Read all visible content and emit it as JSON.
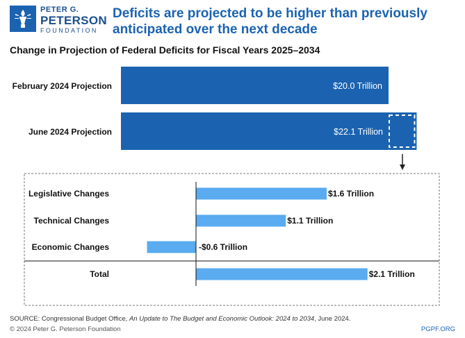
{
  "branding": {
    "logo_line1": "PETER G.",
    "logo_line2": "PETERSON",
    "logo_line3": "FOUNDATION",
    "accent_color": "#1b63b0",
    "light_color": "#5aabef"
  },
  "headline": "Deficits are projected to be higher than previously anticipated over the next decade",
  "footer": {
    "source_prefix": "SOURCE: Congressional Budget Office, ",
    "source_title": "An Update to The Budget and Economic Outlook: 2024 to 2034",
    "source_suffix": ", June 2024.",
    "copyright": "© 2024 Peter G. Peterson Foundation",
    "url": "PGPF.ORG"
  },
  "chart_data": [
    {
      "type": "bar",
      "orientation": "horizontal",
      "title": "Change in Projection of Federal Deficits for Fiscal Years 2025–2034",
      "categories": [
        "February 2024 Projection",
        "June 2024 Projection"
      ],
      "values": [
        20.0,
        22.1
      ],
      "labels": [
        "$20.0 Trillion",
        "$22.1 Trillion"
      ],
      "highlight_increment": 2.1,
      "unit": "Trillion USD"
    },
    {
      "type": "bar",
      "orientation": "horizontal",
      "title": "",
      "categories": [
        "Legislative Changes",
        "Technical Changes",
        "Economic Changes",
        "Total"
      ],
      "values": [
        1.6,
        1.1,
        -0.6,
        2.1
      ],
      "labels": [
        "$1.6 Trillion",
        "$1.1 Trillion",
        "-$0.6 Trillion",
        "$2.1 Trillion"
      ],
      "unit": "Trillion USD"
    }
  ]
}
